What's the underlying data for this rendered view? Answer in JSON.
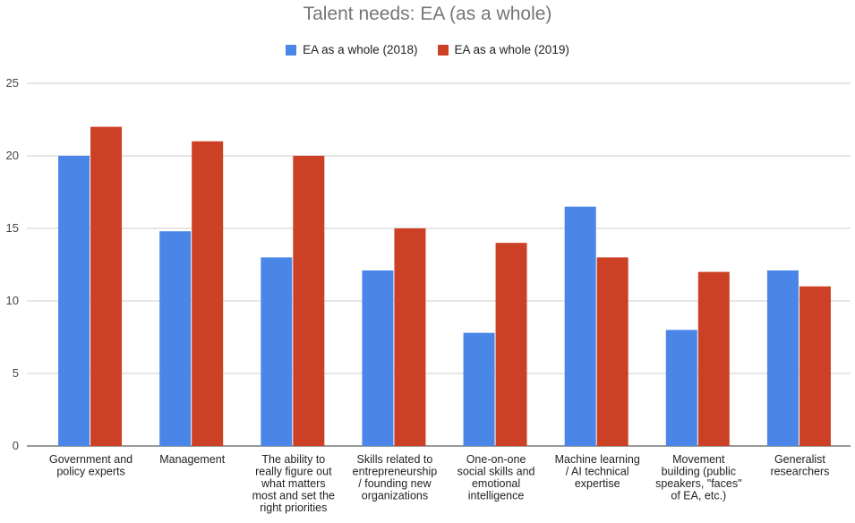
{
  "chart_data": {
    "type": "bar",
    "title": "Talent needs: EA (as a whole)",
    "xlabel": "",
    "ylabel": "",
    "ylim": [
      0,
      25
    ],
    "yticks": [
      0,
      5,
      10,
      15,
      20,
      25
    ],
    "grid": true,
    "legend_position": "top",
    "categories": [
      [
        "Government and",
        "policy experts"
      ],
      [
        "Management"
      ],
      [
        "The ability to",
        "really figure out",
        "what matters",
        "most and set the",
        "right priorities"
      ],
      [
        "Skills related to",
        "entrepreneurship",
        "/ founding new",
        "organizations"
      ],
      [
        "One-on-one",
        "social skills and",
        "emotional",
        "intelligence"
      ],
      [
        "Machine learning",
        "/ AI technical",
        "expertise"
      ],
      [
        "Movement",
        "building (public",
        "speakers, \"faces\"",
        "of EA, etc.)"
      ],
      [
        "Generalist",
        "researchers"
      ]
    ],
    "series": [
      {
        "name": "EA as a whole (2018)",
        "color": "#4a86e8",
        "values": [
          20,
          14.8,
          13,
          12.1,
          7.8,
          16.5,
          8,
          12.1
        ]
      },
      {
        "name": "EA as a whole (2019)",
        "color": "#cc4125",
        "values": [
          22,
          21,
          20,
          15,
          14,
          13,
          12,
          11
        ]
      }
    ]
  }
}
